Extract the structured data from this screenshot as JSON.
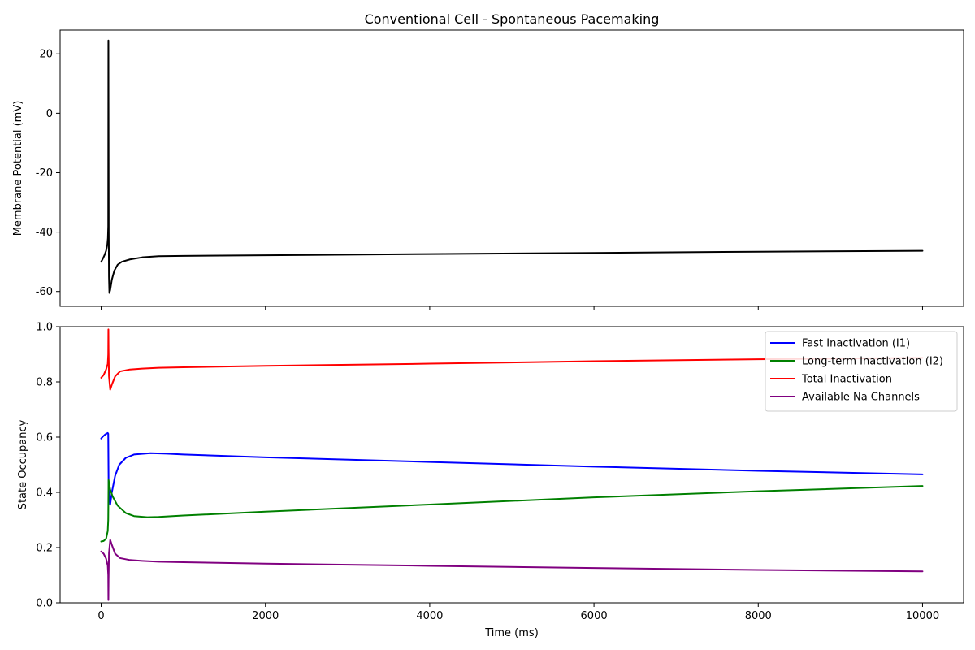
{
  "chart_data": [
    {
      "type": "line",
      "title": "Conventional Cell - Spontaneous Pacemaking",
      "xlabel": "",
      "ylabel": "Membrane Potential (mV)",
      "xlim": [
        -500,
        10500
      ],
      "ylim": [
        -65,
        28
      ],
      "xticks": [
        0,
        2000,
        4000,
        6000,
        8000,
        10000
      ],
      "xticks_labeled": false,
      "yticks": [
        -60,
        -40,
        -20,
        0,
        20
      ],
      "grid": false,
      "series": [
        {
          "color": "#000000",
          "points": [
            [
              0,
              -50
            ],
            [
              20,
              -49
            ],
            [
              40,
              -47.8
            ],
            [
              60,
              -46.3
            ],
            [
              75,
              -44.2
            ],
            [
              82,
              -42
            ],
            [
              86,
              -38
            ],
            [
              88,
              24.5
            ],
            [
              90,
              -5
            ],
            [
              92,
              -40
            ],
            [
              95,
              -55
            ],
            [
              100,
              -60.5
            ],
            [
              110,
              -59.5
            ],
            [
              130,
              -56
            ],
            [
              160,
              -53
            ],
            [
              200,
              -51
            ],
            [
              250,
              -50
            ],
            [
              350,
              -49.2
            ],
            [
              500,
              -48.5
            ],
            [
              700,
              -48.1
            ],
            [
              1000,
              -48.0
            ],
            [
              2000,
              -47.8
            ],
            [
              4000,
              -47.4
            ],
            [
              6000,
              -47.0
            ],
            [
              8000,
              -46.6
            ],
            [
              10000,
              -46.3
            ]
          ]
        }
      ]
    },
    {
      "type": "line",
      "title": "",
      "xlabel": "Time (ms)",
      "ylabel": "State Occupancy",
      "xlim": [
        -500,
        10500
      ],
      "ylim": [
        0,
        1
      ],
      "xticks": [
        0,
        2000,
        4000,
        6000,
        8000,
        10000
      ],
      "xticks_labeled": true,
      "yticks": [
        0,
        0.2,
        0.4,
        0.6,
        0.8,
        1.0
      ],
      "grid": false,
      "legend_position": "top-right",
      "series": [
        {
          "name": "Fast Inactivation (I1)",
          "color": "#0000ff",
          "points": [
            [
              0,
              0.595
            ],
            [
              20,
              0.602
            ],
            [
              50,
              0.61
            ],
            [
              80,
              0.615
            ],
            [
              86,
              0.612
            ],
            [
              90,
              0.45
            ],
            [
              95,
              0.38
            ],
            [
              110,
              0.355
            ],
            [
              130,
              0.4
            ],
            [
              170,
              0.46
            ],
            [
              220,
              0.5
            ],
            [
              300,
              0.525
            ],
            [
              400,
              0.537
            ],
            [
              600,
              0.542
            ],
            [
              800,
              0.54
            ],
            [
              1000,
              0.537
            ],
            [
              2000,
              0.527
            ],
            [
              4000,
              0.51
            ],
            [
              6000,
              0.493
            ],
            [
              8000,
              0.478
            ],
            [
              10000,
              0.465
            ]
          ]
        },
        {
          "name": "Long-term Inactivation (I2)",
          "color": "#008000",
          "points": [
            [
              0,
              0.222
            ],
            [
              30,
              0.224
            ],
            [
              60,
              0.232
            ],
            [
              80,
              0.26
            ],
            [
              86,
              0.3
            ],
            [
              90,
              0.445
            ],
            [
              95,
              0.435
            ],
            [
              110,
              0.41
            ],
            [
              140,
              0.385
            ],
            [
              200,
              0.352
            ],
            [
              300,
              0.325
            ],
            [
              400,
              0.314
            ],
            [
              560,
              0.31
            ],
            [
              700,
              0.311
            ],
            [
              1000,
              0.316
            ],
            [
              2000,
              0.33
            ],
            [
              4000,
              0.356
            ],
            [
              6000,
              0.382
            ],
            [
              8000,
              0.404
            ],
            [
              10000,
              0.423
            ]
          ]
        },
        {
          "name": "Total Inactivation",
          "color": "#ff0000",
          "points": [
            [
              0,
              0.815
            ],
            [
              30,
              0.825
            ],
            [
              60,
              0.845
            ],
            [
              80,
              0.865
            ],
            [
              86,
              0.9
            ],
            [
              88,
              0.99
            ],
            [
              90,
              0.92
            ],
            [
              95,
              0.82
            ],
            [
              110,
              0.772
            ],
            [
              130,
              0.79
            ],
            [
              170,
              0.82
            ],
            [
              230,
              0.838
            ],
            [
              350,
              0.845
            ],
            [
              500,
              0.848
            ],
            [
              700,
              0.851
            ],
            [
              1000,
              0.853
            ],
            [
              2000,
              0.858
            ],
            [
              4000,
              0.866
            ],
            [
              6000,
              0.875
            ],
            [
              8000,
              0.882
            ],
            [
              10000,
              0.887
            ]
          ]
        },
        {
          "name": "Available Na Channels",
          "color": "#800080",
          "points": [
            [
              0,
              0.186
            ],
            [
              30,
              0.178
            ],
            [
              60,
              0.16
            ],
            [
              80,
              0.135
            ],
            [
              86,
              0.1
            ],
            [
              88,
              0.01
            ],
            [
              90,
              0.08
            ],
            [
              95,
              0.18
            ],
            [
              110,
              0.228
            ],
            [
              130,
              0.21
            ],
            [
              170,
              0.178
            ],
            [
              230,
              0.162
            ],
            [
              350,
              0.155
            ],
            [
              500,
              0.152
            ],
            [
              700,
              0.149
            ],
            [
              1000,
              0.147
            ],
            [
              2000,
              0.142
            ],
            [
              4000,
              0.134
            ],
            [
              6000,
              0.126
            ],
            [
              8000,
              0.119
            ],
            [
              10000,
              0.114
            ]
          ]
        }
      ]
    }
  ]
}
